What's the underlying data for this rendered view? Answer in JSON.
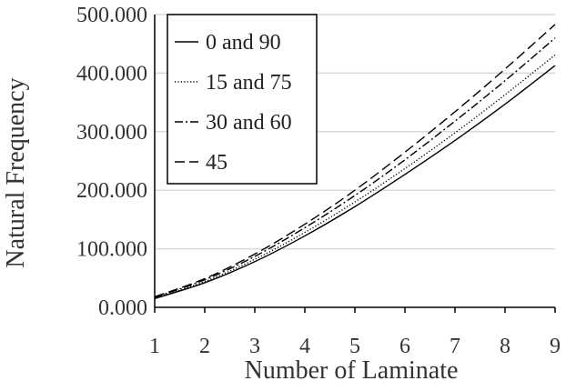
{
  "chart_data": {
    "type": "line",
    "xlabel": "Number of Laminate",
    "ylabel": "Natural Frequency",
    "xlim": [
      1,
      9
    ],
    "ylim": [
      0,
      500
    ],
    "x_ticks": [
      "1",
      "2",
      "3",
      "4",
      "5",
      "6",
      "7",
      "8",
      "9"
    ],
    "y_ticks": [
      "0.000",
      "100.000",
      "200.000",
      "300.000",
      "400.000",
      "500.000"
    ],
    "grid": "horizontal",
    "legend_position": "top-left",
    "x": [
      1,
      2,
      3,
      4,
      5,
      6,
      7,
      8,
      9
    ],
    "series": [
      {
        "name": "0 and 90",
        "dash": "solid",
        "values": [
          15,
          42,
          78,
          122,
          172,
          227,
          285,
          347,
          413
        ]
      },
      {
        "name": "15 and 75",
        "dash": "dotted",
        "values": [
          16,
          44,
          82,
          128,
          180,
          237,
          298,
          363,
          431
        ]
      },
      {
        "name": "30 and 60",
        "dash": "dash-dot",
        "values": [
          17,
          47,
          87,
          136,
          191,
          252,
          318,
          387,
          460
        ]
      },
      {
        "name": "45",
        "dash": "dashed",
        "values": [
          18,
          49,
          91,
          142,
          200,
          265,
          334,
          407,
          483
        ]
      }
    ]
  }
}
